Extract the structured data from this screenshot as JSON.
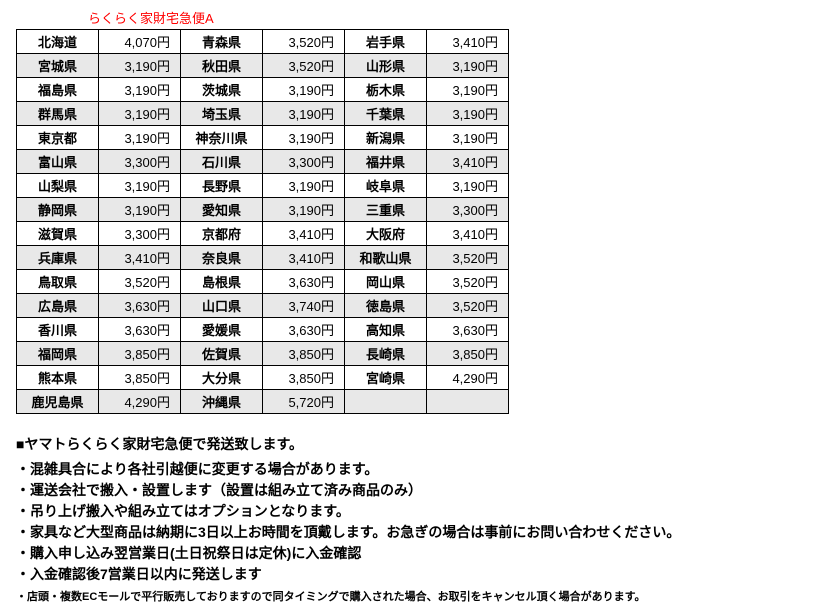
{
  "title": "らくらく家財宅急便A",
  "rows": [
    {
      "shade": false,
      "cells": [
        "北海道",
        "4,070円",
        "青森県",
        "3,520円",
        "岩手県",
        "3,410円"
      ]
    },
    {
      "shade": true,
      "cells": [
        "宮城県",
        "3,190円",
        "秋田県",
        "3,520円",
        "山形県",
        "3,190円"
      ]
    },
    {
      "shade": false,
      "cells": [
        "福島県",
        "3,190円",
        "茨城県",
        "3,190円",
        "栃木県",
        "3,190円"
      ]
    },
    {
      "shade": true,
      "cells": [
        "群馬県",
        "3,190円",
        "埼玉県",
        "3,190円",
        "千葉県",
        "3,190円"
      ]
    },
    {
      "shade": false,
      "cells": [
        "東京都",
        "3,190円",
        "神奈川県",
        "3,190円",
        "新潟県",
        "3,190円"
      ]
    },
    {
      "shade": true,
      "cells": [
        "富山県",
        "3,300円",
        "石川県",
        "3,300円",
        "福井県",
        "3,410円"
      ]
    },
    {
      "shade": false,
      "cells": [
        "山梨県",
        "3,190円",
        "長野県",
        "3,190円",
        "岐阜県",
        "3,190円"
      ]
    },
    {
      "shade": true,
      "cells": [
        "静岡県",
        "3,190円",
        "愛知県",
        "3,190円",
        "三重県",
        "3,300円"
      ]
    },
    {
      "shade": false,
      "cells": [
        "滋賀県",
        "3,300円",
        "京都府",
        "3,410円",
        "大阪府",
        "3,410円"
      ]
    },
    {
      "shade": true,
      "cells": [
        "兵庫県",
        "3,410円",
        "奈良県",
        "3,410円",
        "和歌山県",
        "3,520円"
      ]
    },
    {
      "shade": false,
      "cells": [
        "鳥取県",
        "3,520円",
        "島根県",
        "3,630円",
        "岡山県",
        "3,520円"
      ]
    },
    {
      "shade": true,
      "cells": [
        "広島県",
        "3,630円",
        "山口県",
        "3,740円",
        "徳島県",
        "3,520円"
      ]
    },
    {
      "shade": false,
      "cells": [
        "香川県",
        "3,630円",
        "愛媛県",
        "3,630円",
        "高知県",
        "3,630円"
      ]
    },
    {
      "shade": true,
      "cells": [
        "福岡県",
        "3,850円",
        "佐賀県",
        "3,850円",
        "長崎県",
        "3,850円"
      ]
    },
    {
      "shade": false,
      "cells": [
        "熊本県",
        "3,850円",
        "大分県",
        "3,850円",
        "宮崎県",
        "4,290円"
      ]
    },
    {
      "shade": true,
      "cells": [
        "鹿児島県",
        "4,290円",
        "沖縄県",
        "5,720円",
        "",
        ""
      ]
    }
  ],
  "notes": {
    "heading": "■ヤマトらくらく家財宅急便で発送致します。",
    "bullets": [
      "・混雑具合により各社引越便に変更する場合があります。",
      "・運送会社で搬入・設置します（設置は組み立て済み商品のみ）",
      "・吊り上げ搬入や組み立てはオプションとなります。",
      "・家具など大型商品は納期に3日以上お時間を頂戴します。お急ぎの場合は事前にお問い合わせください。",
      "・購入申し込み翌営業日(土日祝祭日は定休)に入金確認",
      "・入金確認後7営業日以内に発送します"
    ],
    "small": "・店頭・複数ECモールで平行販売しておりますので同タイミングで購入された場合、お取引をキャンセル頂く場合があります。"
  }
}
